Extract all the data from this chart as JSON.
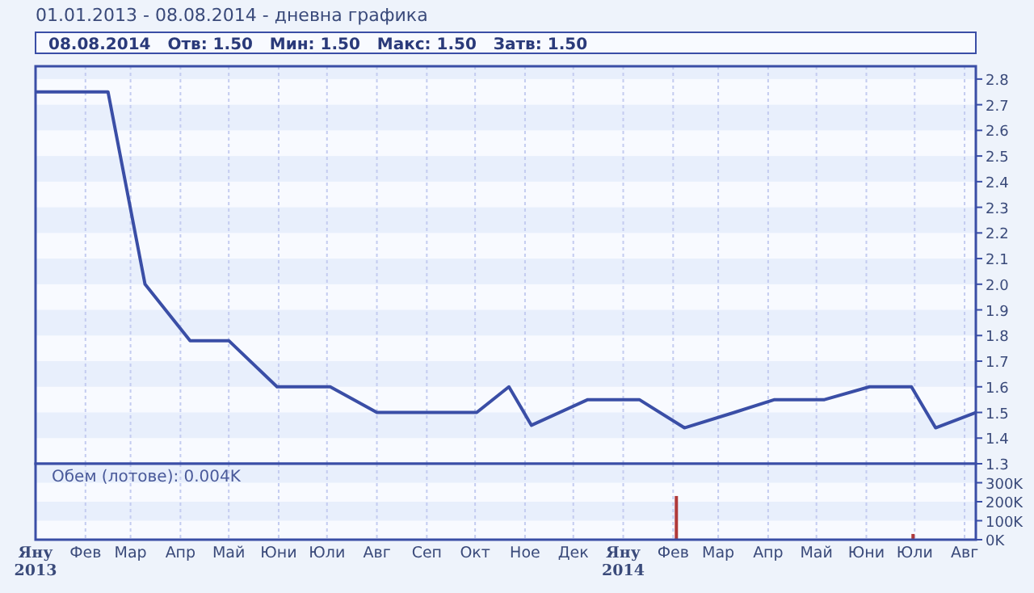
{
  "chart_data": [
    {
      "type": "line",
      "title": "01.01.2013 - 08.08.2014 - дневна графика",
      "subtitle": "08.08.2014   Отв: 1.50   Мин: 1.50   Макс: 1.50   Затв: 1.50",
      "series": [
        {
          "color": "#3a4ea6",
          "x": [
            "2013-01-01",
            "2013-02-15",
            "2013-03-10",
            "2013-04-07",
            "2013-05-01",
            "2013-05-31",
            "2013-07-03",
            "2013-08-01",
            "2013-10-02",
            "2013-10-22",
            "2013-11-05",
            "2013-12-10",
            "2014-01-11",
            "2014-02-08",
            "2014-03-11",
            "2014-04-05",
            "2014-05-06",
            "2014-06-03",
            "2014-06-29",
            "2014-07-14",
            "2014-08-08"
          ],
          "values": [
            2.75,
            2.75,
            2.0,
            1.78,
            1.78,
            1.6,
            1.6,
            1.5,
            1.5,
            1.6,
            1.45,
            1.55,
            1.55,
            1.44,
            1.5,
            1.55,
            1.55,
            1.6,
            1.6,
            1.44,
            1.5
          ]
        }
      ],
      "xlim": [
        "2013-01-01",
        "2014-08-08"
      ],
      "xticks": [
        {
          "value": "2013-01-01",
          "label": null
        },
        {
          "value": "2013-02-01",
          "label": null
        },
        {
          "value": "2013-03-01",
          "label": null
        },
        {
          "value": "2013-04-01",
          "label": null
        },
        {
          "value": "2013-05-01",
          "label": null
        },
        {
          "value": "2013-06-01",
          "label": null
        },
        {
          "value": "2013-07-01",
          "label": null
        },
        {
          "value": "2013-08-01",
          "label": null
        },
        {
          "value": "2013-09-01",
          "label": null
        },
        {
          "value": "2013-10-01",
          "label": null
        },
        {
          "value": "2013-11-01",
          "label": null
        },
        {
          "value": "2013-12-01",
          "label": null
        },
        {
          "value": "2014-01-01",
          "label": null
        },
        {
          "value": "2014-02-01",
          "label": null
        },
        {
          "value": "2014-03-01",
          "label": null
        },
        {
          "value": "2014-04-01",
          "label": null
        },
        {
          "value": "2014-05-01",
          "label": null
        },
        {
          "value": "2014-06-01",
          "label": null
        },
        {
          "value": "2014-07-01",
          "label": null
        },
        {
          "value": "2014-08-01",
          "label": null
        }
      ],
      "ylim": [
        1.3,
        2.85
      ],
      "yticks": [
        1.3,
        1.4,
        1.5,
        1.6,
        1.7,
        1.8,
        1.9,
        {
          "value": 2,
          "label": "2.0"
        },
        2.1,
        2.2,
        2.3,
        2.4,
        2.5,
        2.6,
        2.7,
        2.8
      ],
      "grid": true,
      "tick_labels": "y",
      "line_style": "solid"
    },
    {
      "type": "bar",
      "title": "Обем (лотове): 0.004K",
      "series": [
        {
          "color": "#b03a3a",
          "x": [
            "2014-02-03",
            "2014-06-30"
          ],
          "values": [
            230000,
            30000
          ]
        }
      ],
      "xlim": [
        "2013-01-01",
        "2014-08-08"
      ],
      "xticks": [
        {
          "value": "2013-01-01",
          "label": "Яну 2013"
        },
        {
          "value": "2013-02-01",
          "label": "Фев"
        },
        {
          "value": "2013-03-01",
          "label": "Мар"
        },
        {
          "value": "2013-04-01",
          "label": "Апр"
        },
        {
          "value": "2013-05-01",
          "label": "Май"
        },
        {
          "value": "2013-06-01",
          "label": "Юни"
        },
        {
          "value": "2013-07-01",
          "label": "Юли"
        },
        {
          "value": "2013-08-01",
          "label": "Авг"
        },
        {
          "value": "2013-09-01",
          "label": "Сеп"
        },
        {
          "value": "2013-10-01",
          "label": "Окт"
        },
        {
          "value": "2013-11-01",
          "label": "Ное"
        },
        {
          "value": "2013-12-01",
          "label": "Дек"
        },
        {
          "value": "2014-01-01",
          "label": "Яну 2014"
        },
        {
          "value": "2014-02-01",
          "label": "Фев"
        },
        {
          "value": "2014-03-01",
          "label": "Мар"
        },
        {
          "value": "2014-04-01",
          "label": "Апр"
        },
        {
          "value": "2014-05-01",
          "label": "Май"
        },
        {
          "value": "2014-06-01",
          "label": "Юни"
        },
        {
          "value": "2014-07-01",
          "label": "Юли"
        },
        {
          "value": "2014-08-01",
          "label": "Авг"
        }
      ],
      "ylim": [
        0,
        400000
      ],
      "yticks": [
        {
          "value": 0,
          "label": "0K"
        },
        {
          "value": 100000,
          "label": "100K"
        },
        {
          "value": 200000,
          "label": "200K"
        },
        {
          "value": 300000,
          "label": "300K"
        }
      ],
      "grid": true
    }
  ]
}
